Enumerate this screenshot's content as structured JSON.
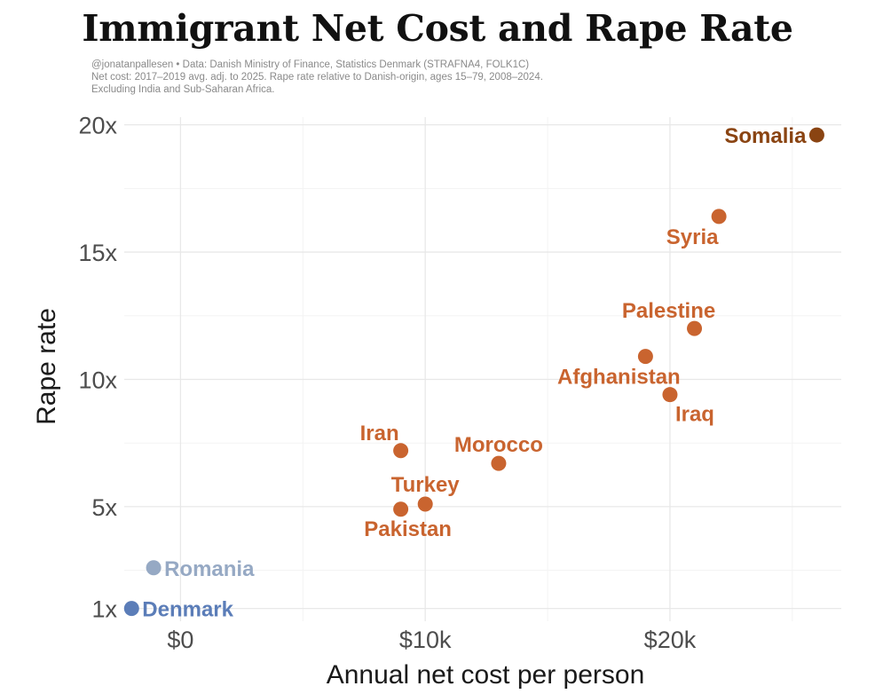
{
  "chart_data": {
    "type": "scatter",
    "title": "Immigrant Net Cost and Rape Rate",
    "subtitle": [
      "@jonatanpallesen • Data: Danish Ministry of Finance, Statistics Denmark (STRAFNA4, FOLK1C)",
      "Net cost: 2017–2019 avg. adj. to 2025. Rape rate relative to Danish-origin, ages 15–79, 2008–2024.",
      "Excluding India and Sub-Saharan Africa."
    ],
    "xlabel": "Annual net cost per person",
    "ylabel": "Rape rate",
    "xlim": [
      -2300,
      27000
    ],
    "ylim": [
      0.5,
      20.3
    ],
    "x_ticks": [
      {
        "value": 0,
        "label": "$0"
      },
      {
        "value": 10000,
        "label": "$10k"
      },
      {
        "value": 20000,
        "label": "$20k"
      }
    ],
    "y_ticks": [
      {
        "value": 1,
        "label": "1x"
      },
      {
        "value": 5,
        "label": "5x"
      },
      {
        "value": 10,
        "label": "10x"
      },
      {
        "value": 15,
        "label": "15x"
      },
      {
        "value": 20,
        "label": "20x"
      }
    ],
    "points": [
      {
        "label": "Denmark",
        "x": -2000,
        "y": 1.0,
        "color": "#5b7db8"
      },
      {
        "label": "Romania",
        "x": -1100,
        "y": 2.6,
        "color": "#96a9c4"
      },
      {
        "label": "Pakistan",
        "x": 9000,
        "y": 4.9,
        "color": "#c9642f"
      },
      {
        "label": "Turkey",
        "x": 10000,
        "y": 5.1,
        "color": "#c9642f"
      },
      {
        "label": "Iran",
        "x": 9000,
        "y": 7.2,
        "color": "#c9642f"
      },
      {
        "label": "Morocco",
        "x": 13000,
        "y": 6.7,
        "color": "#c9642f"
      },
      {
        "label": "Afghanistan",
        "x": 19000,
        "y": 10.9,
        "color": "#c9642f"
      },
      {
        "label": "Iraq",
        "x": 20000,
        "y": 9.4,
        "color": "#c9642f"
      },
      {
        "label": "Palestine",
        "x": 21000,
        "y": 12.0,
        "color": "#c9642f"
      },
      {
        "label": "Syria",
        "x": 22000,
        "y": 16.4,
        "color": "#c9642f"
      },
      {
        "label": "Somalia",
        "x": 26000,
        "y": 19.6,
        "color": "#8a4412"
      }
    ]
  }
}
